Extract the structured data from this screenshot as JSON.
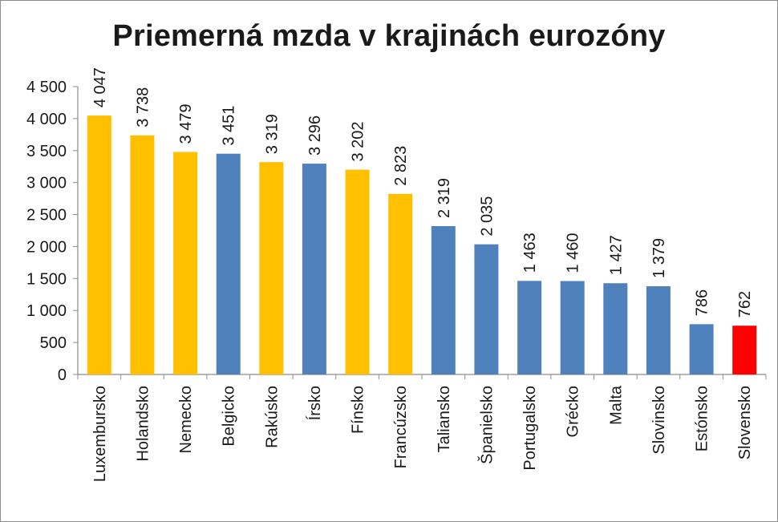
{
  "chart_data": {
    "type": "bar",
    "title": "Priemerná mzda v krajinách eurozóny",
    "xlabel": "",
    "ylabel": "",
    "ylim": [
      0,
      4500
    ],
    "yticks": [
      0,
      500,
      1000,
      1500,
      2000,
      2500,
      3000,
      3500,
      4000,
      4500
    ],
    "ytick_labels": [
      "0",
      "500",
      "1 000",
      "1 500",
      "2 000",
      "2 500",
      "3 000",
      "3 500",
      "4 000",
      "4 500"
    ],
    "grid": false,
    "legend": "none",
    "categories": [
      "Luxembursko",
      "Holandsko",
      "Nemecko",
      "Belgicko",
      "Rakúsko",
      "Írsko",
      "Fínsko",
      "Francúzsko",
      "Taliansko",
      "Španielsko",
      "Portugalsko",
      "Grécko",
      "Malta",
      "Slovinsko",
      "Estónsko",
      "Slovensko"
    ],
    "values": [
      4047,
      3738,
      3479,
      3451,
      3319,
      3296,
      3202,
      2823,
      2319,
      2035,
      1463,
      1460,
      1427,
      1379,
      786,
      762
    ],
    "value_labels": [
      "4 047",
      "3 738",
      "3 479",
      "3 451",
      "3 319",
      "3 296",
      "3 202",
      "2 823",
      "2 319",
      "2 035",
      "1 463",
      "1 460",
      "1 427",
      "1 379",
      "786",
      "762"
    ],
    "bar_colors": [
      "#ffc000",
      "#ffc000",
      "#ffc000",
      "#4f81bd",
      "#ffc000",
      "#4f81bd",
      "#ffc000",
      "#ffc000",
      "#4f81bd",
      "#4f81bd",
      "#4f81bd",
      "#4f81bd",
      "#4f81bd",
      "#4f81bd",
      "#4f81bd",
      "#ff0000"
    ]
  },
  "colors": {
    "highlight_gold": "#ffc000",
    "base_blue": "#4f81bd",
    "slovakia_red": "#ff0000",
    "axis": "#8c8c8c"
  }
}
